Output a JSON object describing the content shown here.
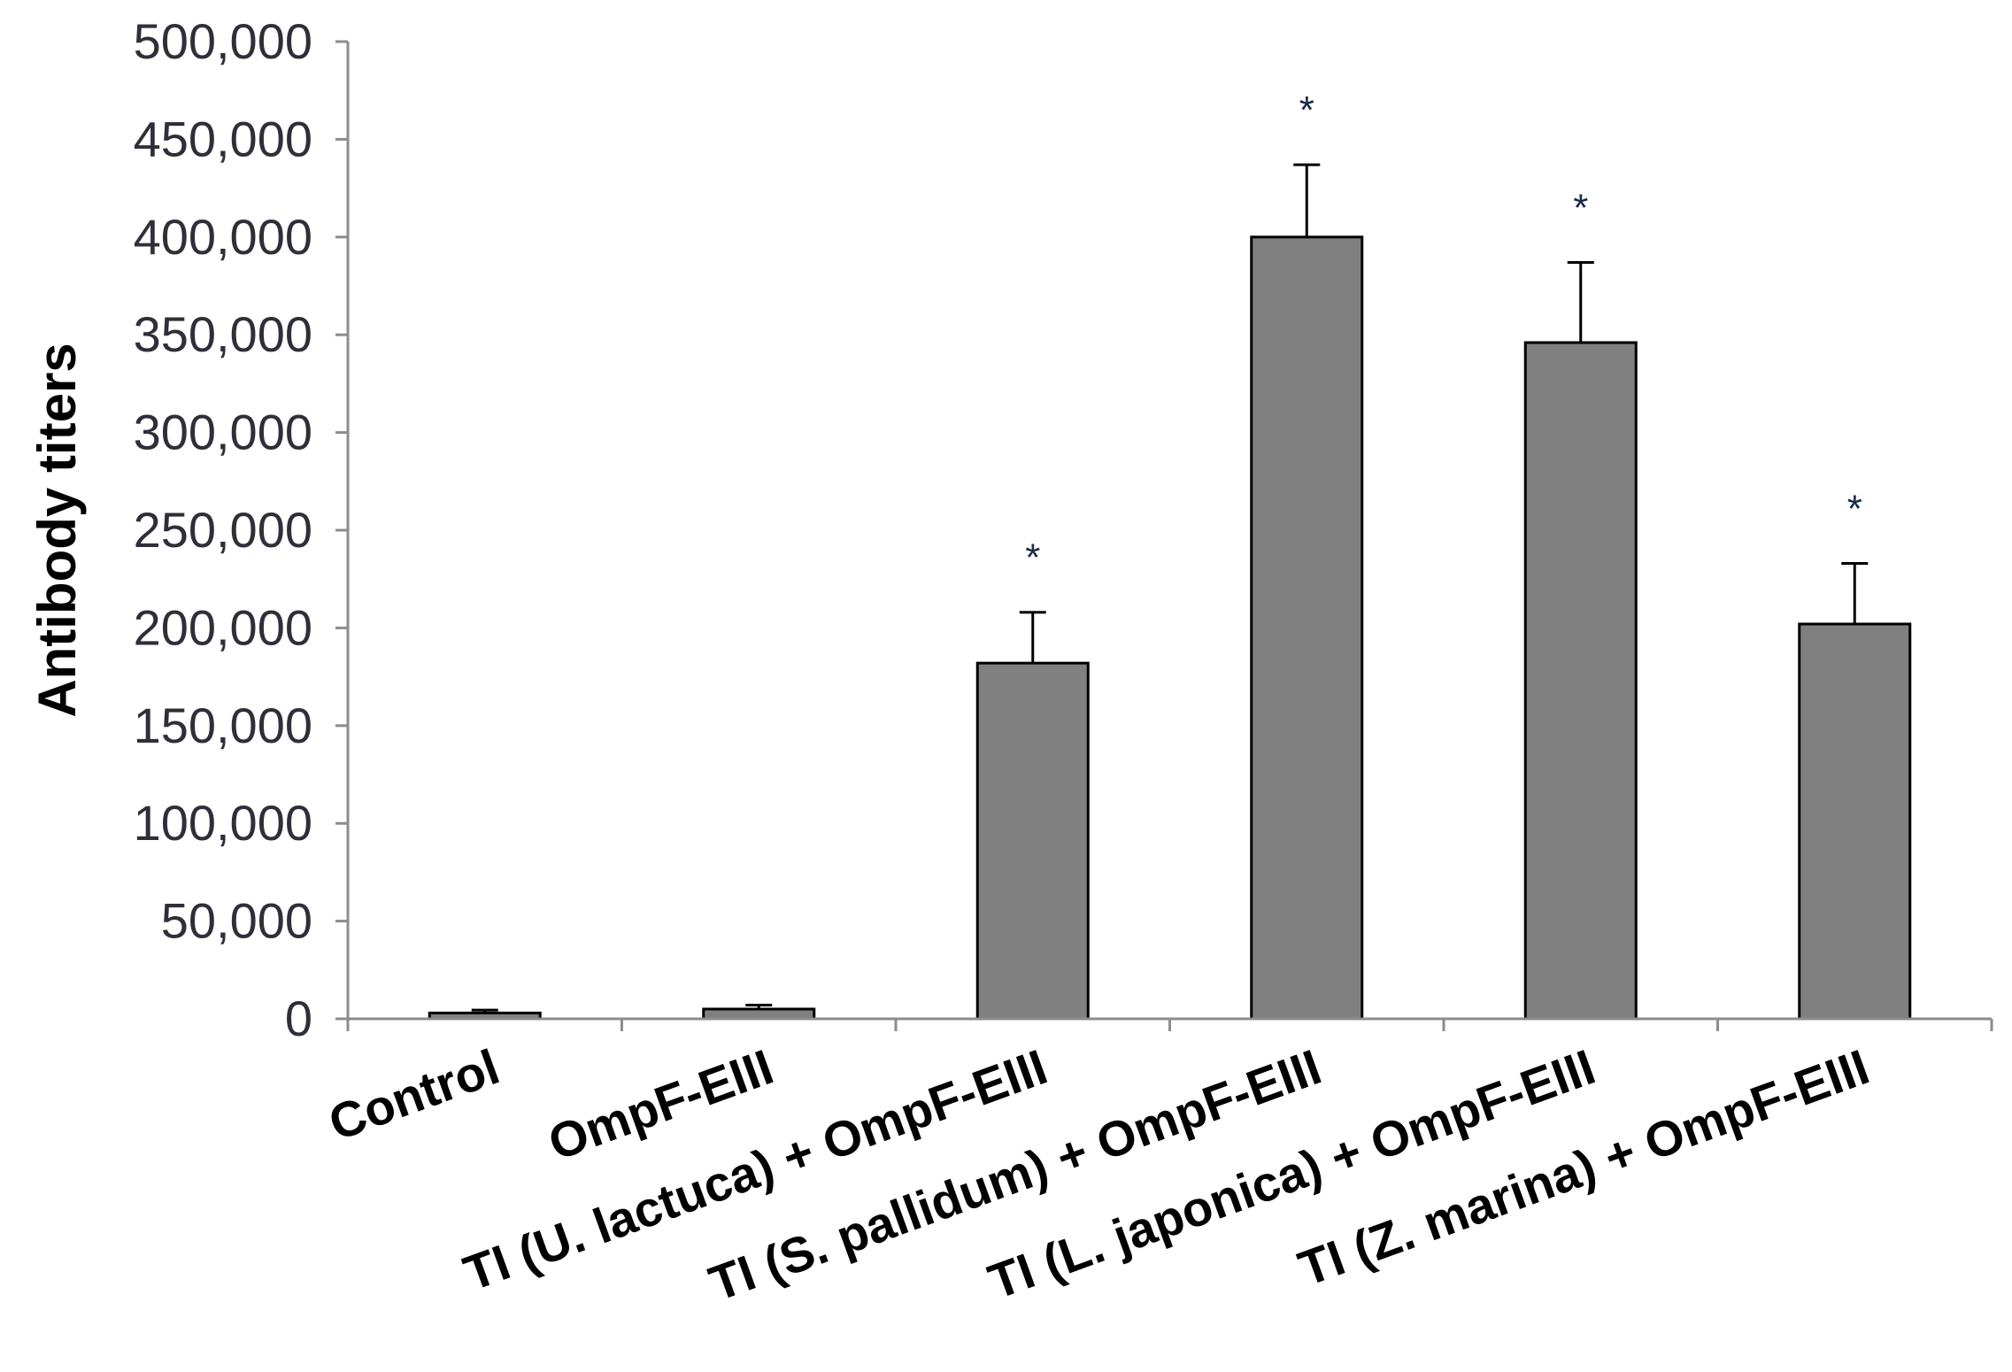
{
  "chart_data": {
    "type": "bar",
    "title": "",
    "xlabel": "",
    "ylabel": "Antibody titers",
    "ylim": [
      0,
      500000
    ],
    "yticks": [
      0,
      50000,
      100000,
      150000,
      200000,
      250000,
      300000,
      350000,
      400000,
      450000,
      500000
    ],
    "ytick_labels": [
      "0",
      "50,000",
      "100,000",
      "150,000",
      "200,000",
      "250,000",
      "300,000",
      "350,000",
      "400,000",
      "450,000",
      "500,000"
    ],
    "categories": [
      "Control",
      "OmpF-EIII",
      "TI (U. lactuca) + OmpF-EIII",
      "TI (S. pallidum) + OmpF-EIII",
      "TI (L. japonica) + OmpF-EIII",
      "TI (Z. marina) + OmpF-EIII"
    ],
    "values": [
      3000,
      5000,
      182000,
      400000,
      346000,
      202000
    ],
    "error_upper": [
      1500,
      2000,
      26000,
      37000,
      41000,
      31000
    ],
    "annotations": [
      "",
      "",
      "*",
      "*",
      "*",
      "*"
    ],
    "grid": false,
    "legend": "none",
    "bar_color": "#808080",
    "bar_edge_color": "#000000",
    "axis_color": "#8c8c8c"
  }
}
